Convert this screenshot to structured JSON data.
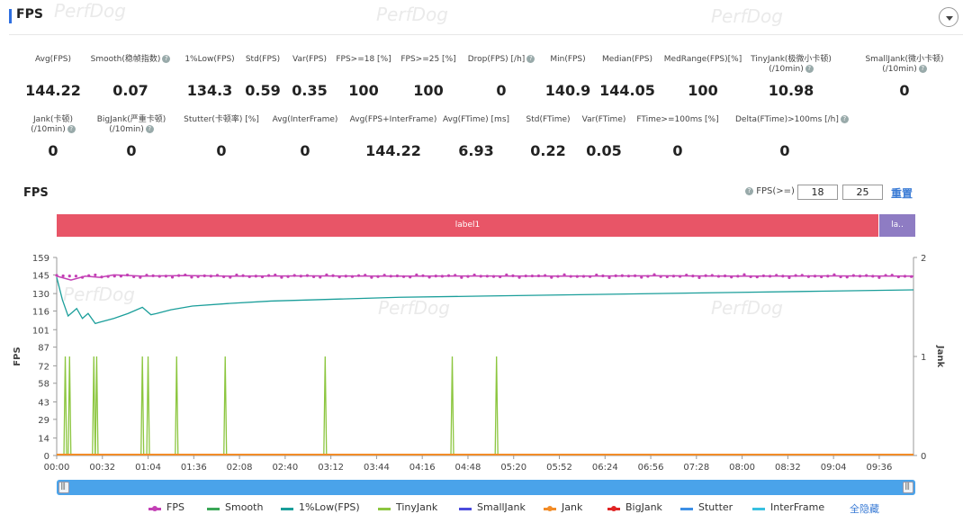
{
  "header": {
    "title": "FPS"
  },
  "watermark": "PerfDog",
  "metrics_row1": [
    {
      "label": "Avg(FPS)",
      "value": "144.22",
      "help": false
    },
    {
      "label": "Smooth(稳帧指数)",
      "value": "0.07",
      "help": true
    },
    {
      "label": "1%Low(FPS)",
      "value": "134.3",
      "help": false
    },
    {
      "label": "Std(FPS)",
      "value": "0.59",
      "help": false
    },
    {
      "label": "Var(FPS)",
      "value": "0.35",
      "help": false
    },
    {
      "label": "FPS>=18 [%]",
      "value": "100",
      "help": false
    },
    {
      "label": "FPS>=25 [%]",
      "value": "100",
      "help": false
    },
    {
      "label": "Drop(FPS) [/h]",
      "value": "0",
      "help": true
    },
    {
      "label": "Min(FPS)",
      "value": "140.9",
      "help": false
    },
    {
      "label": "Median(FPS)",
      "value": "144.05",
      "help": false
    },
    {
      "label": "MedRange(FPS)[%]",
      "value": "100",
      "help": false
    },
    {
      "label": "TinyJank(极微小卡顿)",
      "label2": "(/10min)",
      "value": "10.98",
      "help": true
    },
    {
      "label": "SmallJank(微小卡顿)",
      "label2": "(/10min)",
      "value": "0",
      "help": true
    }
  ],
  "metrics_row2": [
    {
      "label": "Jank(卡顿)",
      "label2": "(/10min)",
      "value": "0",
      "help": true
    },
    {
      "label": "BigJank(严重卡顿)",
      "label2": "(/10min)",
      "value": "0",
      "help": true
    },
    {
      "label": "Stutter(卡顿率) [%]",
      "value": "0",
      "help": false
    },
    {
      "label": "Avg(InterFrame)",
      "value": "0",
      "help": false
    },
    {
      "label": "Avg(FPS+InterFrame)",
      "value": "144.22",
      "help": false
    },
    {
      "label": "Avg(FTime) [ms]",
      "value": "6.93",
      "help": false
    },
    {
      "label": "Std(FTime)",
      "value": "0.22",
      "help": false
    },
    {
      "label": "Var(FTime)",
      "value": "0.05",
      "help": false
    },
    {
      "label": "FTime>=100ms [%]",
      "value": "0",
      "help": false
    },
    {
      "label": "Delta(FTime)>100ms [/h]",
      "value": "0",
      "help": true
    }
  ],
  "chart_header": {
    "title": "FPS",
    "fps_ge_label": "FPS(>=)",
    "threshold1": "18",
    "threshold2": "25",
    "reset_label": "重置"
  },
  "labels": [
    {
      "text": "label1",
      "color": "#e85567"
    },
    {
      "text": "la..",
      "color": "#8e7cc3"
    }
  ],
  "legend": {
    "items": [
      {
        "name": "FPS",
        "color": "#c340b5",
        "marker": "dot"
      },
      {
        "name": "Smooth",
        "color": "#3aa757",
        "marker": "line"
      },
      {
        "name": "1%Low(FPS)",
        "color": "#1a9e9a",
        "marker": "line"
      },
      {
        "name": "TinyJank",
        "color": "#8cc63f",
        "marker": "line"
      },
      {
        "name": "SmallJank",
        "color": "#4b4bdc",
        "marker": "line"
      },
      {
        "name": "Jank",
        "color": "#f28c28",
        "marker": "dot"
      },
      {
        "name": "BigJank",
        "color": "#e02424",
        "marker": "dot"
      },
      {
        "name": "Stutter",
        "color": "#3c8fe6",
        "marker": "line"
      },
      {
        "name": "InterFrame",
        "color": "#38c0e0",
        "marker": "line"
      }
    ],
    "hide_all_label": "全隐藏"
  },
  "chart_data": {
    "type": "line",
    "xlabel": "",
    "ylabel": "FPS",
    "y2label": "Jank",
    "x_ticks": [
      "00:00",
      "00:32",
      "01:04",
      "01:36",
      "02:08",
      "02:40",
      "03:12",
      "03:44",
      "04:16",
      "04:48",
      "05:20",
      "05:52",
      "06:24",
      "06:56",
      "07:28",
      "08:00",
      "08:32",
      "09:04",
      "09:36"
    ],
    "y_ticks": [
      0,
      14,
      29,
      43,
      58,
      72,
      87,
      101,
      116,
      130,
      145,
      159
    ],
    "y2_ticks": [
      0,
      1,
      2
    ],
    "ylim": [
      0,
      159
    ],
    "y2lim": [
      0,
      2
    ],
    "x_range_sec": [
      0,
      600
    ],
    "series": [
      {
        "name": "FPS",
        "x_sec": [
          0,
          10,
          20,
          30,
          40,
          60,
          90,
          120,
          180,
          240,
          300,
          360,
          420,
          480,
          540,
          600
        ],
        "values": [
          144,
          140.9,
          144,
          143,
          145,
          144,
          144.5,
          144,
          144.2,
          144,
          144.1,
          144,
          144.3,
          144,
          144.2,
          144
        ]
      },
      {
        "name": "1%Low(FPS)",
        "x_sec": [
          0,
          4,
          8,
          14,
          18,
          22,
          27,
          30,
          40,
          50,
          60,
          66,
          70,
          80,
          95,
          120,
          150,
          180,
          240,
          300,
          360,
          420,
          480,
          540,
          600
        ],
        "values": [
          143,
          125,
          112,
          118,
          110,
          114,
          106,
          107,
          110,
          114,
          119,
          113,
          114,
          117,
          120,
          122,
          124,
          125,
          127,
          128,
          129,
          130,
          131,
          132,
          133
        ]
      },
      {
        "name": "TinyJank",
        "axis": "y2",
        "spike_x_sec": [
          6,
          9,
          26,
          28,
          60,
          64,
          84,
          118,
          188,
          277,
          308
        ],
        "spike_value": 1
      },
      {
        "name": "Jank",
        "axis": "y2",
        "values_constant": 0
      }
    ]
  }
}
